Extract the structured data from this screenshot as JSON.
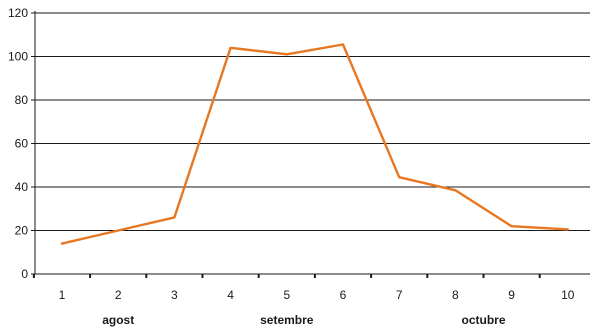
{
  "chart_data": {
    "type": "line",
    "title": "",
    "xlabel": "",
    "ylabel": "",
    "x": [
      "1",
      "2",
      "3",
      "4",
      "5",
      "6",
      "7",
      "8",
      "9",
      "10"
    ],
    "series": [
      {
        "values": [
          14,
          20,
          26,
          104,
          101,
          105.5,
          44.5,
          38.5,
          22,
          20.5
        ],
        "color": "#e87722"
      }
    ],
    "ylim": [
      0,
      120
    ],
    "yticks": [
      0,
      20,
      40,
      60,
      80,
      100,
      120
    ],
    "x_groups": [
      {
        "label": "agost",
        "from": "1",
        "to": "3"
      },
      {
        "label": "setembre",
        "from": "4",
        "to": "6"
      },
      {
        "label": "octubre",
        "from": "7",
        "to": "10"
      }
    ],
    "grid": true,
    "legend": "none"
  }
}
